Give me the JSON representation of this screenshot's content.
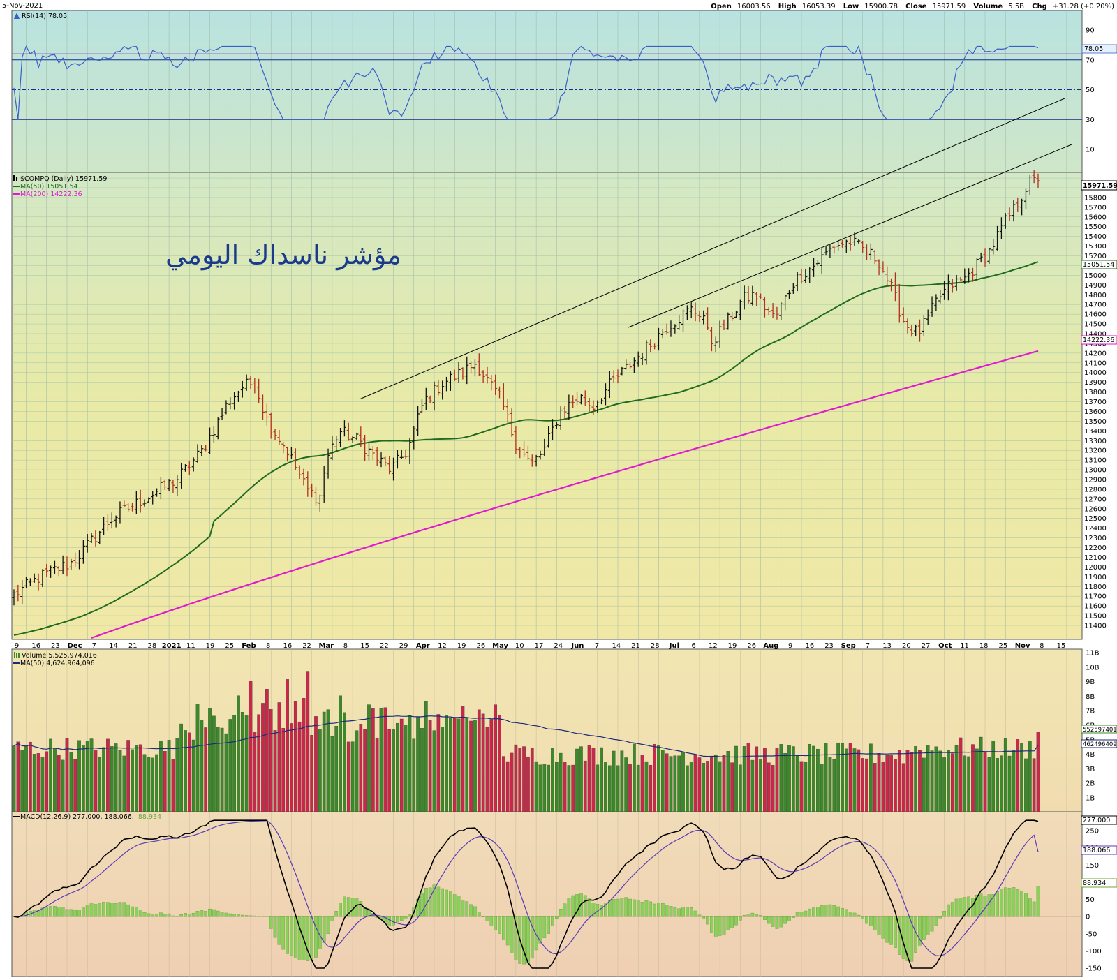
{
  "header": {
    "date": "5-Nov-2021",
    "open_label": "Open",
    "open": "16003.56",
    "high_label": "High",
    "high": "16053.39",
    "low_label": "Low",
    "low": "15900.78",
    "close_label": "Close",
    "close": "15971.59",
    "volume_label": "Volume",
    "volume": "5.5B",
    "chg_label": "Chg",
    "chg": "+31.28 (+0.20%)"
  },
  "rsi_panel": {
    "legend": "RSI(14) 78.05",
    "last_value": "78.05",
    "ticks": [
      "90",
      "70",
      "50",
      "30",
      "10"
    ]
  },
  "price_panel": {
    "legend_title": "$COMPQ (Daily) 15971.59",
    "legend_ma50": "MA(50) 15051.54",
    "legend_ma200": "MA(200) 14222.36",
    "last_close": "15971.59",
    "last_ma50": "15051.54",
    "last_ma200": "14222.36",
    "annotation": "مؤشر ناسداك اليومي"
  },
  "volume_panel": {
    "legend_volume": "Volume 5,525,974,016",
    "legend_ma50": "MA(50) 4,624,964,096",
    "last_volume": "5525974016",
    "last_ma": "4624964096",
    "ticks": [
      "11B",
      "10B",
      "9B",
      "8B",
      "7B",
      "6B",
      "5B",
      "4B",
      "3B",
      "2B",
      "1B"
    ]
  },
  "macd_panel": {
    "legend_label": "MACD(12,26,9) 277.000, 188.066,",
    "legend_hist": "88.934",
    "last_macd": "277.000",
    "last_signal": "188.066",
    "last_hist": "88.934",
    "ticks": [
      "250",
      "200",
      "150",
      "100",
      "50",
      "0",
      "-50",
      "-100",
      "-150"
    ]
  },
  "x_axis_labels": [
    {
      "t": "9",
      "bold": false
    },
    {
      "t": "16",
      "bold": false
    },
    {
      "t": "23",
      "bold": false
    },
    {
      "t": "Dec",
      "bold": true
    },
    {
      "t": "7",
      "bold": false
    },
    {
      "t": "14",
      "bold": false
    },
    {
      "t": "21",
      "bold": false
    },
    {
      "t": "28",
      "bold": false
    },
    {
      "t": "2021",
      "bold": true
    },
    {
      "t": "11",
      "bold": false
    },
    {
      "t": "19",
      "bold": false
    },
    {
      "t": "25",
      "bold": false
    },
    {
      "t": "Feb",
      "bold": true
    },
    {
      "t": "8",
      "bold": false
    },
    {
      "t": "16",
      "bold": false
    },
    {
      "t": "22",
      "bold": false
    },
    {
      "t": "Mar",
      "bold": true
    },
    {
      "t": "8",
      "bold": false
    },
    {
      "t": "15",
      "bold": false
    },
    {
      "t": "22",
      "bold": false
    },
    {
      "t": "29",
      "bold": false
    },
    {
      "t": "Apr",
      "bold": true
    },
    {
      "t": "12",
      "bold": false
    },
    {
      "t": "19",
      "bold": false
    },
    {
      "t": "26",
      "bold": false
    },
    {
      "t": "May",
      "bold": true
    },
    {
      "t": "10",
      "bold": false
    },
    {
      "t": "17",
      "bold": false
    },
    {
      "t": "24",
      "bold": false
    },
    {
      "t": "Jun",
      "bold": true
    },
    {
      "t": "7",
      "bold": false
    },
    {
      "t": "14",
      "bold": false
    },
    {
      "t": "21",
      "bold": false
    },
    {
      "t": "28",
      "bold": false
    },
    {
      "t": "Jul",
      "bold": true
    },
    {
      "t": "6",
      "bold": false
    },
    {
      "t": "12",
      "bold": false
    },
    {
      "t": "19",
      "bold": false
    },
    {
      "t": "26",
      "bold": false
    },
    {
      "t": "Aug",
      "bold": true
    },
    {
      "t": "9",
      "bold": false
    },
    {
      "t": "16",
      "bold": false
    },
    {
      "t": "23",
      "bold": false
    },
    {
      "t": "Sep",
      "bold": true
    },
    {
      "t": "7",
      "bold": false
    },
    {
      "t": "13",
      "bold": false
    },
    {
      "t": "20",
      "bold": false
    },
    {
      "t": "27",
      "bold": false
    },
    {
      "t": "Oct",
      "bold": true
    },
    {
      "t": "11",
      "bold": false
    },
    {
      "t": "18",
      "bold": false
    },
    {
      "t": "25",
      "bold": false
    },
    {
      "t": "Nov",
      "bold": true
    },
    {
      "t": "8",
      "bold": false
    },
    {
      "t": "15",
      "bold": false
    }
  ],
  "colors": {
    "up_bar": "#111111",
    "down_bar": "#b03020",
    "ma50": "#1f6b1f",
    "ma200": "#e01ad0",
    "rsi_line": "#3a5fc8",
    "rsi_bands": "#1a2a8c",
    "rsi_70_overlay": "#a040c8",
    "vol_up": "#3a8a2a",
    "vol_down": "#c8284a",
    "vol_ma": "#1a2a7c",
    "macd_line": "#000000",
    "macd_signal": "#5a3ab8",
    "macd_hist": "#8ccf5a",
    "annotation": "#1a3a8c"
  },
  "chart_data": [
    {
      "type": "line",
      "title": "RSI(14)",
      "series": [
        {
          "name": "RSI(14)",
          "last": 78.05
        }
      ],
      "reference_lines": [
        70,
        50,
        30
      ],
      "ylim": [
        0,
        100
      ]
    },
    {
      "type": "ohlc",
      "title": "$COMPQ (Daily) 15971.59",
      "x_range": [
        "2020-11-09",
        "2021-11-05"
      ],
      "ylim": [
        11400,
        16100
      ],
      "monthly_closes_approx": [
        {
          "x": "2020-11",
          "close": 12200
        },
        {
          "x": "2020-12",
          "close": 12890
        },
        {
          "x": "2021-01",
          "close": 13070
        },
        {
          "x": "2021-02",
          "close": 13190
        },
        {
          "x": "2021-03",
          "close": 13250
        },
        {
          "x": "2021-04",
          "close": 13960
        },
        {
          "x": "2021-05",
          "close": 13740
        },
        {
          "x": "2021-06",
          "close": 14500
        },
        {
          "x": "2021-07",
          "close": 14670
        },
        {
          "x": "2021-08",
          "close": 15260
        },
        {
          "x": "2021-09",
          "close": 14450
        },
        {
          "x": "2021-10",
          "close": 15500
        },
        {
          "x": "2021-11-05",
          "close": 15971.59
        }
      ],
      "series": [
        {
          "name": "MA(50)",
          "last": 15051.54
        },
        {
          "name": "MA(200)",
          "last": 14222.36
        }
      ]
    },
    {
      "type": "bar",
      "title": "Volume",
      "series": [
        {
          "name": "Volume",
          "last": 5525974016
        },
        {
          "name": "MA(50)",
          "last": 4624964096
        }
      ],
      "ylim": [
        0,
        11000000000
      ]
    },
    {
      "type": "line",
      "title": "MACD(12,26,9)",
      "series": [
        {
          "name": "MACD",
          "last": 277.0
        },
        {
          "name": "Signal",
          "last": 188.066
        },
        {
          "name": "Histogram",
          "last": 88.934
        }
      ],
      "ylim": [
        -160,
        285
      ]
    }
  ]
}
